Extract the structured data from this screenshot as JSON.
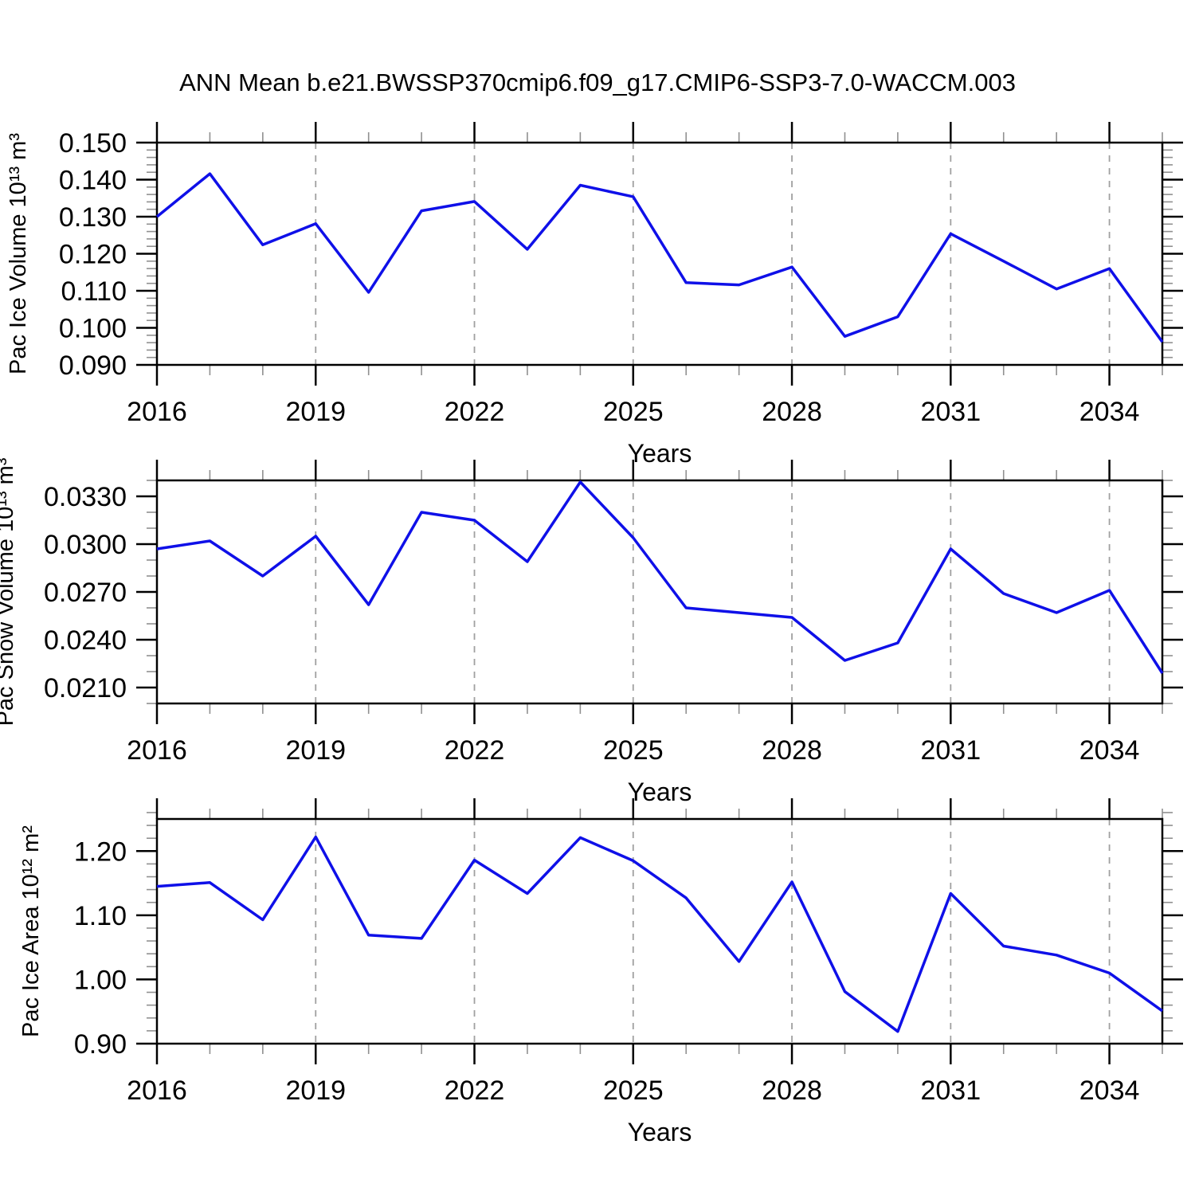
{
  "title": "ANN Mean b.e21.BWSSP370cmip6.f09_g17.CMIP6-SSP3-7.0-WACCM.003",
  "line_color": "#0f10e8",
  "grid_color": "#a0a0a0",
  "frame_color": "#000000",
  "minor_tick_color": "#909090",
  "chart_data": [
    {
      "type": "line",
      "title": "",
      "ylabel": "Pac Ice Volume 10¹³ m³",
      "xlabel": "Years",
      "x": [
        2016,
        2017,
        2018,
        2019,
        2020,
        2021,
        2022,
        2023,
        2024,
        2025,
        2026,
        2027,
        2028,
        2029,
        2030,
        2031,
        2032,
        2033,
        2034,
        2035
      ],
      "values": [
        0.13,
        0.1416,
        0.1224,
        0.1281,
        0.1096,
        0.1316,
        0.1341,
        0.1212,
        0.1385,
        0.1354,
        0.1122,
        0.1116,
        0.1164,
        0.0977,
        0.103,
        0.1254,
        0.118,
        0.1105,
        0.116,
        0.0962
      ],
      "xlim": [
        2016,
        2035
      ],
      "ylim": [
        0.09,
        0.15
      ],
      "xticks": [
        2016,
        2019,
        2022,
        2025,
        2028,
        2031,
        2034
      ],
      "xtick_labels": [
        "2016",
        "2019",
        "2022",
        "2025",
        "2028",
        "2031",
        "2034"
      ],
      "yticks": [
        0.09,
        0.1,
        0.11,
        0.12,
        0.13,
        0.14,
        0.15
      ],
      "ytick_labels": [
        "0.090",
        "0.100",
        "0.110",
        "0.120",
        "0.130",
        "0.140",
        "0.150"
      ],
      "yminor_step": 0.002,
      "xminor_step": 1,
      "grid": "vertical-dashed",
      "legend": "none"
    },
    {
      "type": "line",
      "title": "",
      "ylabel": "Pac Snow Volume 10¹³ m³",
      "xlabel": "Years",
      "x": [
        2016,
        2017,
        2018,
        2019,
        2020,
        2021,
        2022,
        2023,
        2024,
        2025,
        2026,
        2027,
        2028,
        2029,
        2030,
        2031,
        2032,
        2033,
        2034,
        2035
      ],
      "values": [
        0.0297,
        0.0302,
        0.028,
        0.0305,
        0.0262,
        0.032,
        0.0315,
        0.0289,
        0.0339,
        0.0304,
        0.026,
        0.0257,
        0.0254,
        0.0227,
        0.0238,
        0.0297,
        0.0269,
        0.0257,
        0.0271,
        0.0219
      ],
      "xlim": [
        2016,
        2035
      ],
      "ylim": [
        0.02,
        0.034
      ],
      "xticks": [
        2016,
        2019,
        2022,
        2025,
        2028,
        2031,
        2034
      ],
      "xtick_labels": [
        "2016",
        "2019",
        "2022",
        "2025",
        "2028",
        "2031",
        "2034"
      ],
      "yticks": [
        0.021,
        0.024,
        0.027,
        0.03,
        0.033
      ],
      "ytick_labels": [
        "0.0210",
        "0.0240",
        "0.0270",
        "0.0300",
        "0.0330"
      ],
      "yminor_step": 0.001,
      "xminor_step": 1,
      "grid": "vertical-dashed",
      "legend": "none"
    },
    {
      "type": "line",
      "title": "",
      "ylabel": "Pac Ice Area 10¹² m²",
      "xlabel": "Years",
      "x": [
        2016,
        2017,
        2018,
        2019,
        2020,
        2021,
        2022,
        2023,
        2024,
        2025,
        2026,
        2027,
        2028,
        2029,
        2030,
        2031,
        2032,
        2033,
        2034,
        2035
      ],
      "values": [
        1.145,
        1.151,
        1.093,
        1.222,
        1.069,
        1.064,
        1.186,
        1.134,
        1.221,
        1.185,
        1.127,
        1.028,
        1.152,
        0.981,
        0.919,
        1.134,
        1.052,
        1.038,
        1.01,
        0.951
      ],
      "xlim": [
        2016,
        2035
      ],
      "ylim": [
        0.9,
        1.25
      ],
      "xticks": [
        2016,
        2019,
        2022,
        2025,
        2028,
        2031,
        2034
      ],
      "xtick_labels": [
        "2016",
        "2019",
        "2022",
        "2025",
        "2028",
        "2031",
        "2034"
      ],
      "yticks": [
        0.9,
        1.0,
        1.1,
        1.2
      ],
      "ytick_labels": [
        "0.90",
        "1.00",
        "1.10",
        "1.20"
      ],
      "yminor_step": 0.02,
      "xminor_step": 1,
      "grid": "vertical-dashed",
      "legend": "none"
    }
  ]
}
